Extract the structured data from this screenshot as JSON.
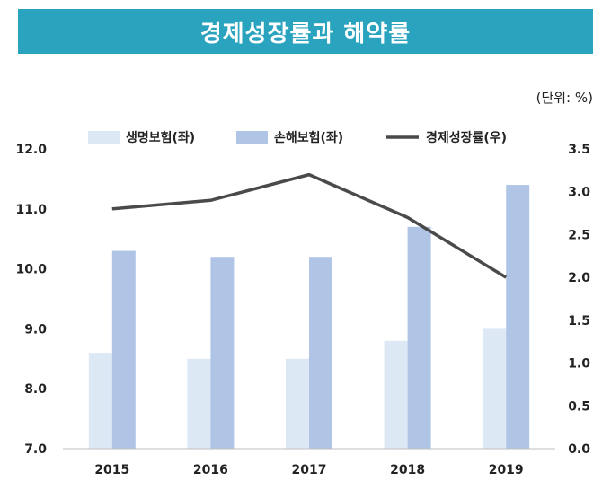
{
  "title": "경제성장률과 해약률",
  "unit_label": "(단위: %)",
  "colors": {
    "title_bg": "#2aa3bf",
    "life": "#dde8f5",
    "nonlife": "#b0c4e6",
    "line": "#4a4a4a"
  },
  "chart_data": {
    "type": "bar",
    "categories": [
      "2015",
      "2016",
      "2017",
      "2018",
      "2019"
    ],
    "series": [
      {
        "name": "생명보험(좌)",
        "type": "bar",
        "axis": "left",
        "values": [
          8.6,
          8.5,
          8.5,
          8.8,
          9.0
        ]
      },
      {
        "name": "손해보험(좌)",
        "type": "bar",
        "axis": "left",
        "values": [
          10.3,
          10.2,
          10.2,
          10.7,
          11.4
        ]
      },
      {
        "name": "경제성장률(우)",
        "type": "line",
        "axis": "right",
        "values": [
          2.8,
          2.9,
          3.2,
          2.7,
          2.0
        ]
      }
    ],
    "y_left": {
      "min": 7.0,
      "max": 12.0,
      "ticks": [
        "7.0",
        "8.0",
        "9.0",
        "10.0",
        "11.0",
        "12.0"
      ]
    },
    "y_right": {
      "min": 0.0,
      "max": 3.5,
      "ticks": [
        "0.0",
        "0.5",
        "1.0",
        "1.5",
        "2.0",
        "2.5",
        "3.0",
        "3.5"
      ]
    },
    "legend_position": "top",
    "grid": false
  }
}
